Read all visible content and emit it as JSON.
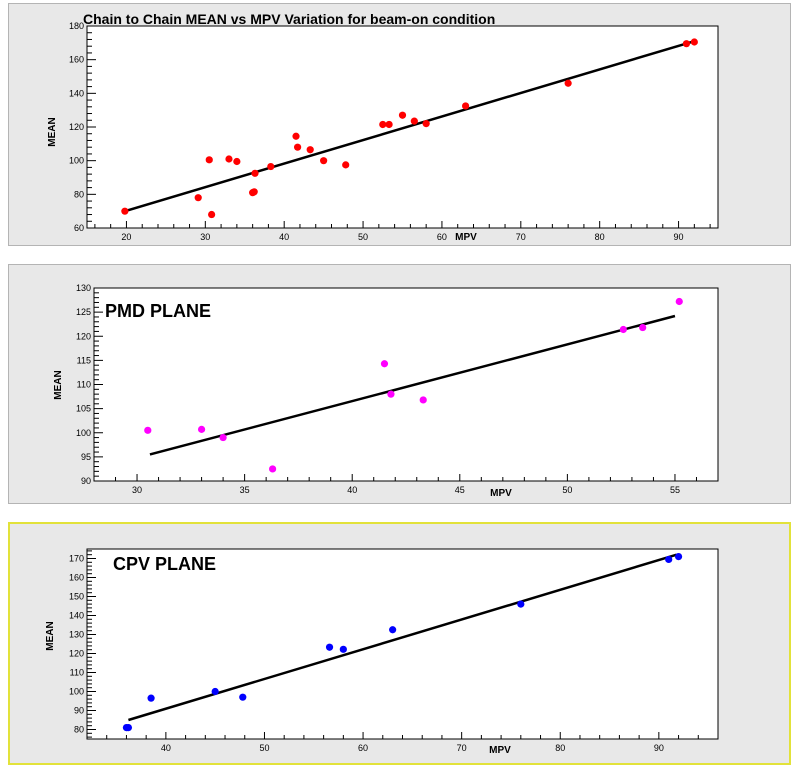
{
  "chart_data": [
    {
      "type": "scatter",
      "title": "Chain to Chain MEAN vs MPV Variation for beam-on condition",
      "label": "",
      "xlabel": "MPV",
      "ylabel": "MEAN",
      "xlim": [
        15,
        95
      ],
      "ylim": [
        60,
        180
      ],
      "xticks": [
        20,
        30,
        40,
        50,
        60,
        70,
        80,
        90
      ],
      "yticks": [
        60,
        80,
        100,
        120,
        140,
        160,
        180
      ],
      "marker_color": "#ff0000",
      "fit_color": "#000000",
      "points": [
        {
          "x": 19.8,
          "y": 70
        },
        {
          "x": 29.1,
          "y": 78
        },
        {
          "x": 30.5,
          "y": 100.5
        },
        {
          "x": 30.8,
          "y": 68
        },
        {
          "x": 33.0,
          "y": 101
        },
        {
          "x": 34.0,
          "y": 99.5
        },
        {
          "x": 36.0,
          "y": 81
        },
        {
          "x": 36.2,
          "y": 81.5
        },
        {
          "x": 36.3,
          "y": 92.5
        },
        {
          "x": 38.3,
          "y": 96.5
        },
        {
          "x": 41.5,
          "y": 114.5
        },
        {
          "x": 41.7,
          "y": 108
        },
        {
          "x": 43.3,
          "y": 106.5
        },
        {
          "x": 45.0,
          "y": 100
        },
        {
          "x": 47.8,
          "y": 97.5
        },
        {
          "x": 52.5,
          "y": 121.5
        },
        {
          "x": 53.3,
          "y": 121.5
        },
        {
          "x": 55.0,
          "y": 127
        },
        {
          "x": 56.5,
          "y": 123.5
        },
        {
          "x": 58.0,
          "y": 122
        },
        {
          "x": 63.0,
          "y": 132.5
        },
        {
          "x": 76.0,
          "y": 146
        },
        {
          "x": 91.0,
          "y": 169.5
        },
        {
          "x": 92.0,
          "y": 170.5
        }
      ],
      "fit": {
        "x": [
          19.8,
          92.0
        ],
        "y": [
          70,
          171
        ]
      }
    },
    {
      "type": "scatter",
      "title": "",
      "label": "PMD PLANE",
      "xlabel": "MPV",
      "ylabel": "MEAN",
      "xlim": [
        28,
        57
      ],
      "ylim": [
        90,
        130
      ],
      "xticks": [
        30,
        35,
        40,
        45,
        50,
        55
      ],
      "yticks": [
        90,
        95,
        100,
        105,
        110,
        115,
        120,
        125,
        130
      ],
      "marker_color": "#ff00ff",
      "fit_color": "#000000",
      "points": [
        {
          "x": 30.5,
          "y": 100.5
        },
        {
          "x": 33.0,
          "y": 100.7
        },
        {
          "x": 34.0,
          "y": 99
        },
        {
          "x": 36.3,
          "y": 92.5
        },
        {
          "x": 41.5,
          "y": 114.3
        },
        {
          "x": 41.8,
          "y": 108
        },
        {
          "x": 43.3,
          "y": 106.8
        },
        {
          "x": 52.6,
          "y": 121.4
        },
        {
          "x": 53.5,
          "y": 121.8
        },
        {
          "x": 55.2,
          "y": 127.2
        }
      ],
      "fit": {
        "x": [
          30.6,
          55.0
        ],
        "y": [
          95.5,
          124.2
        ]
      }
    },
    {
      "type": "scatter",
      "title": "",
      "label": "CPV PLANE",
      "xlabel": "MPV",
      "ylabel": "MEAN",
      "xlim": [
        32,
        96
      ],
      "ylim": [
        75,
        175
      ],
      "xticks": [
        40,
        50,
        60,
        70,
        80,
        90
      ],
      "yticks": [
        80,
        90,
        100,
        110,
        120,
        130,
        140,
        150,
        160,
        170
      ],
      "marker_color": "#0000ff",
      "fit_color": "#000000",
      "points": [
        {
          "x": 36.0,
          "y": 81
        },
        {
          "x": 36.2,
          "y": 81
        },
        {
          "x": 38.5,
          "y": 96.5
        },
        {
          "x": 45.0,
          "y": 100
        },
        {
          "x": 47.8,
          "y": 97
        },
        {
          "x": 56.6,
          "y": 123.3
        },
        {
          "x": 58.0,
          "y": 122.2
        },
        {
          "x": 63.0,
          "y": 132.5
        },
        {
          "x": 76.0,
          "y": 146
        },
        {
          "x": 91.0,
          "y": 169.5
        },
        {
          "x": 92.0,
          "y": 171
        }
      ],
      "fit": {
        "x": [
          36.2,
          91.8
        ],
        "y": [
          85,
          172
        ]
      }
    }
  ]
}
